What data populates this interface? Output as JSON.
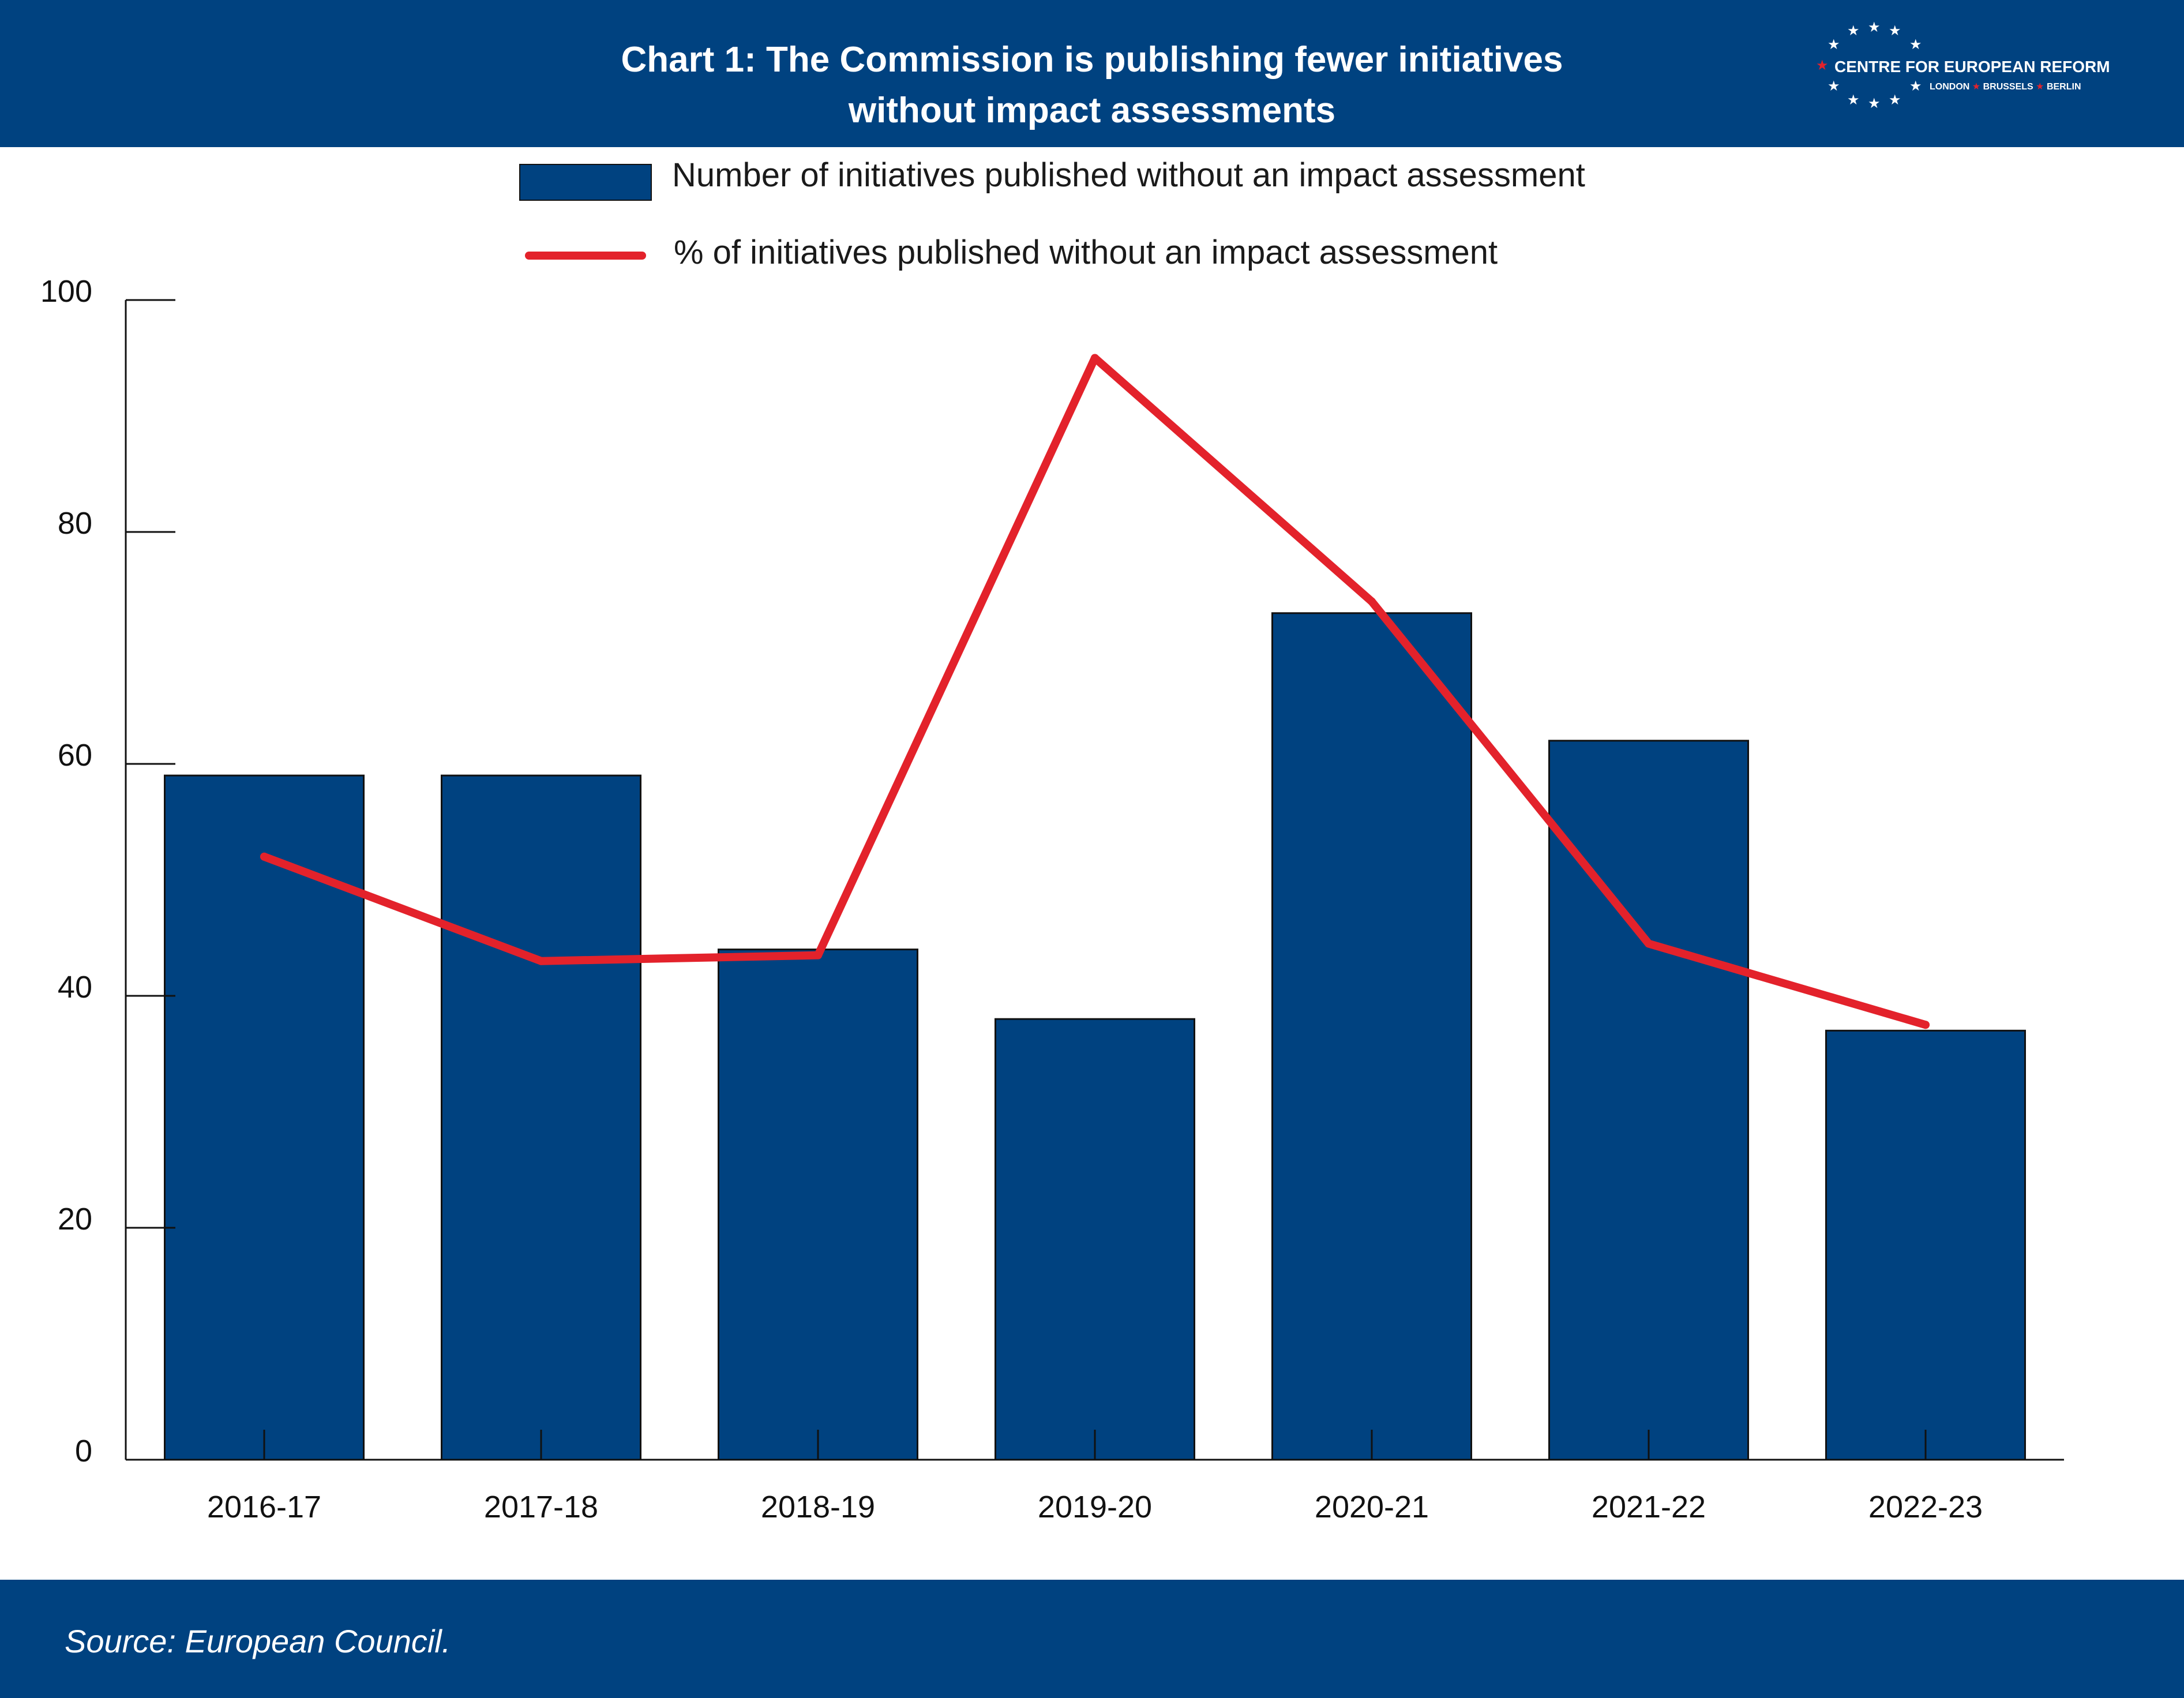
{
  "header": {
    "title_line1": "Chart 1: The Commission is publishing fewer initiatives",
    "title_line2": "without impact assessments",
    "logo_name": "CENTRE FOR EUROPEAN REFORM",
    "logo_cities": [
      "LONDON",
      "BRUSSELS",
      "BERLIN"
    ]
  },
  "colors": {
    "header_bg": "#004280",
    "bar": "#004280",
    "line": "#e3222b"
  },
  "footer": {
    "source": "Source: European Council."
  },
  "chart_data": {
    "type": "bar",
    "categories": [
      "2016-17",
      "2017-18",
      "2018-19",
      "2019-20",
      "2020-21",
      "2021-22",
      "2022-23"
    ],
    "series": [
      {
        "name": "Number of initiatives published without an impact assessment",
        "type": "bar",
        "values": [
          59,
          59,
          44,
          38,
          73,
          62,
          37
        ]
      },
      {
        "name": "% of initiatives published without an impact assessment",
        "type": "line",
        "values": [
          52,
          43,
          43.5,
          95,
          74,
          44.5,
          37.5
        ]
      }
    ],
    "yticks": [
      0,
      20,
      40,
      60,
      80,
      100
    ],
    "ylim": [
      0,
      100
    ],
    "title": "",
    "xlabel": "",
    "ylabel": "",
    "legend_position": "top-center",
    "grid": false
  }
}
